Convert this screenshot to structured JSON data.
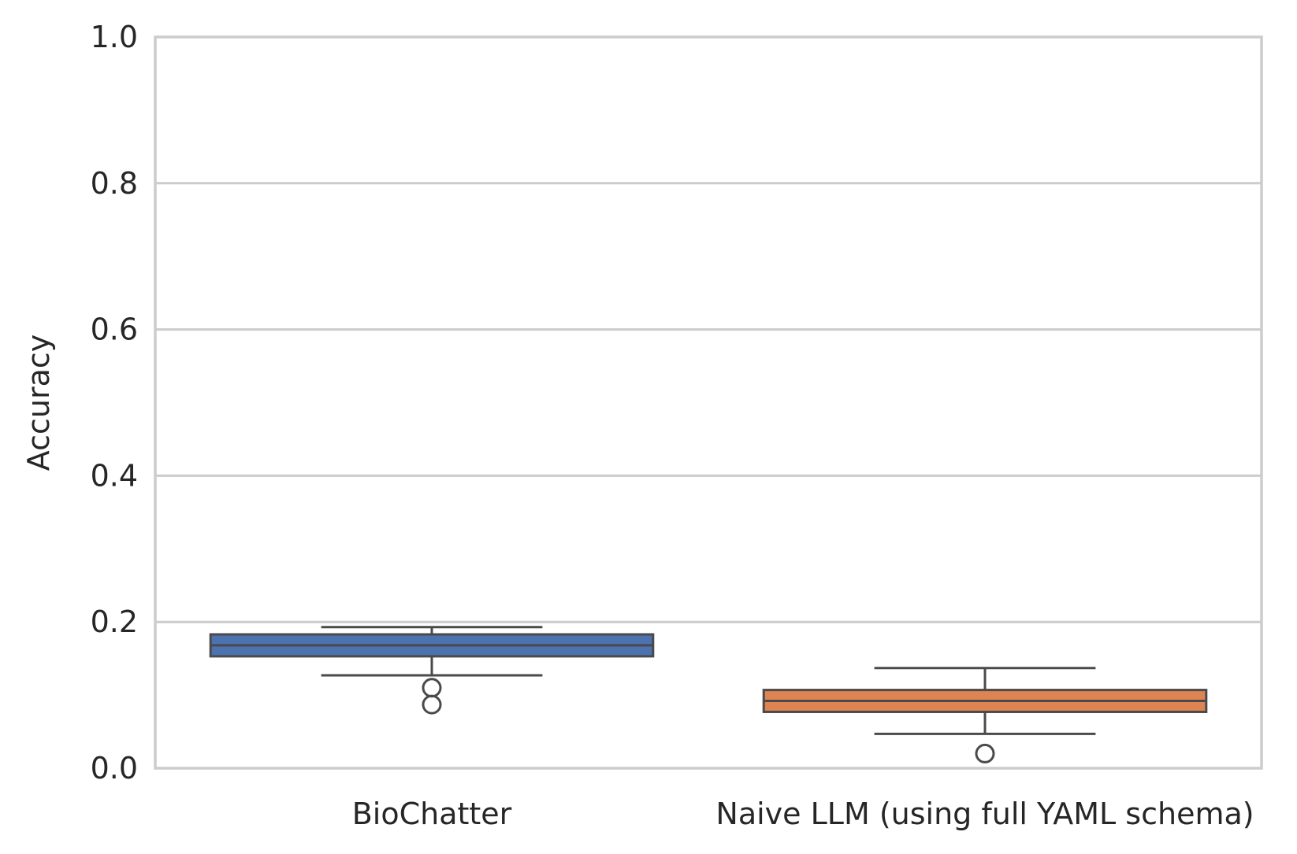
{
  "chart_data": {
    "type": "box",
    "title": "",
    "xlabel": "",
    "ylabel": "Accuracy",
    "ylim": [
      0,
      1
    ],
    "yticks": [
      "0.0",
      "0.2",
      "0.4",
      "0.6",
      "0.8",
      "1.0"
    ],
    "grid": "horizontal",
    "categories": [
      "BioChatter",
      "Naive LLM (using full YAML schema)"
    ],
    "boxes": [
      {
        "category": "BioChatter",
        "color": "#4c72b0",
        "whisker_low": 0.127,
        "q1": 0.153,
        "median": 0.168,
        "q3": 0.183,
        "whisker_high": 0.193,
        "outliers": [
          0.11,
          0.087
        ]
      },
      {
        "category": "Naive LLM (using full YAML schema)",
        "color": "#dd8452",
        "whisker_low": 0.047,
        "q1": 0.077,
        "median": 0.092,
        "q3": 0.107,
        "whisker_high": 0.137,
        "outliers": [
          0.02
        ]
      }
    ]
  }
}
